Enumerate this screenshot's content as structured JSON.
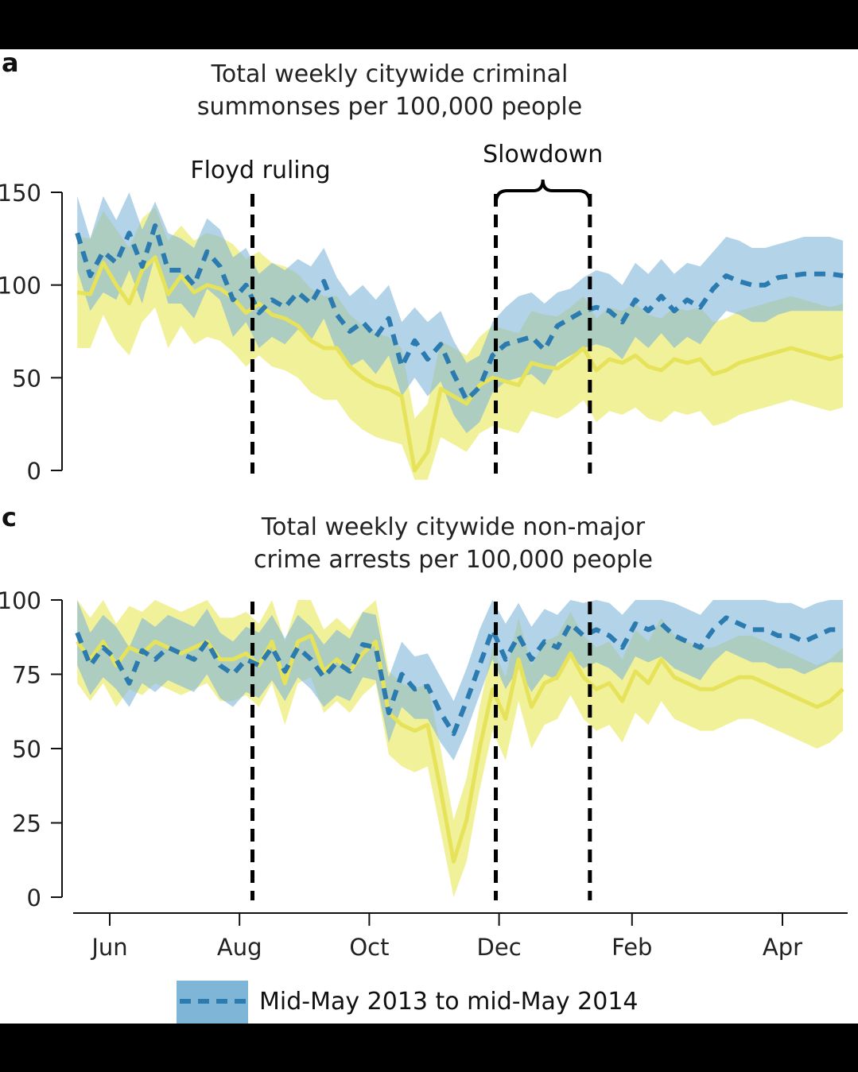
{
  "colors": {
    "blue_band": "#7fb6d8",
    "blue_line": "#2b7bb1",
    "yellow_band": "#eeee88",
    "yellow_line": "#e6e25a",
    "overlap": "#b7d49a",
    "axis": "#111111",
    "background": "#ffffff",
    "frame": "#000000"
  },
  "months": [
    "Jun",
    "Aug",
    "Oct",
    "Dec",
    "Feb",
    "Apr"
  ],
  "legend": {
    "label": "Mid-May 2013 to mid-May 2014"
  },
  "chart_data": [
    {
      "panel_label": "a",
      "type": "line",
      "title_line1": "Total weekly citywide criminal",
      "title_line2": "summonses per 100,000 people",
      "ylim": [
        0,
        150
      ],
      "yticks": [
        0,
        50,
        100,
        150
      ],
      "x_range": [
        -0.5,
        11.5
      ],
      "events": [
        {
          "label": "Floyd ruling",
          "x": 2.2
        },
        {
          "label": "Slowdown",
          "x_start": 5.95,
          "x_end": 7.4
        }
      ],
      "series": [
        {
          "name": "Mid-May 2013 to mid-May 2014",
          "style": "dashed",
          "x": [
            -0.5,
            -0.3,
            -0.1,
            0.1,
            0.3,
            0.5,
            0.7,
            0.9,
            1.1,
            1.3,
            1.5,
            1.7,
            1.9,
            2.1,
            2.3,
            2.5,
            2.7,
            2.9,
            3.1,
            3.3,
            3.5,
            3.7,
            3.9,
            4.1,
            4.3,
            4.5,
            4.7,
            4.9,
            5.1,
            5.3,
            5.5,
            5.7,
            5.9,
            6.1,
            6.3,
            6.5,
            6.7,
            6.9,
            7.1,
            7.3,
            7.5,
            7.7,
            7.9,
            8.1,
            8.3,
            8.5,
            8.7,
            8.9,
            9.1,
            9.3,
            9.5,
            9.7,
            9.9,
            10.1,
            10.3,
            10.5,
            10.7,
            10.9,
            11.1,
            11.3
          ],
          "y": [
            128,
            105,
            118,
            112,
            128,
            110,
            132,
            108,
            108,
            100,
            118,
            110,
            92,
            100,
            85,
            92,
            88,
            96,
            90,
            102,
            84,
            75,
            80,
            72,
            82,
            56,
            70,
            60,
            68,
            52,
            38,
            45,
            62,
            68,
            70,
            72,
            65,
            78,
            82,
            86,
            88,
            86,
            80,
            92,
            86,
            94,
            86,
            92,
            88,
            98,
            105,
            102,
            100,
            100,
            104,
            105,
            106,
            106,
            106,
            105
          ],
          "upper": [
            148,
            125,
            148,
            135,
            150,
            130,
            145,
            128,
            125,
            120,
            136,
            130,
            115,
            120,
            106,
            112,
            108,
            114,
            110,
            120,
            104,
            94,
            100,
            92,
            100,
            80,
            88,
            80,
            86,
            70,
            58,
            62,
            80,
            88,
            94,
            96,
            90,
            96,
            98,
            104,
            108,
            106,
            100,
            112,
            106,
            114,
            106,
            112,
            110,
            118,
            126,
            124,
            120,
            120,
            122,
            124,
            126,
            126,
            126,
            124
          ],
          "lower": [
            108,
            86,
            96,
            92,
            108,
            90,
            116,
            90,
            90,
            82,
            98,
            92,
            72,
            80,
            66,
            72,
            68,
            76,
            70,
            82,
            64,
            56,
            60,
            52,
            62,
            40,
            50,
            40,
            48,
            30,
            20,
            26,
            42,
            48,
            50,
            52,
            46,
            58,
            62,
            66,
            68,
            66,
            60,
            72,
            66,
            74,
            66,
            72,
            68,
            78,
            86,
            84,
            80,
            80,
            84,
            86,
            86,
            86,
            86,
            86
          ]
        },
        {
          "name": "",
          "style": "solid",
          "x": [
            -0.5,
            -0.3,
            -0.1,
            0.1,
            0.3,
            0.5,
            0.7,
            0.9,
            1.1,
            1.3,
            1.5,
            1.7,
            1.9,
            2.1,
            2.3,
            2.5,
            2.7,
            2.9,
            3.1,
            3.3,
            3.5,
            3.7,
            3.9,
            4.1,
            4.3,
            4.5,
            4.7,
            4.9,
            5.1,
            5.3,
            5.5,
            5.7,
            5.9,
            6.1,
            6.3,
            6.5,
            6.7,
            6.9,
            7.1,
            7.3,
            7.5,
            7.7,
            7.9,
            8.1,
            8.3,
            8.5,
            8.7,
            8.9,
            9.1,
            9.3,
            9.5,
            9.7,
            9.9,
            10.1,
            10.3,
            10.5,
            10.7,
            10.9,
            11.1,
            11.3
          ],
          "y": [
            96,
            95,
            112,
            100,
            90,
            108,
            115,
            95,
            105,
            96,
            100,
            98,
            93,
            85,
            90,
            84,
            82,
            78,
            70,
            66,
            66,
            56,
            50,
            46,
            44,
            40,
            0,
            10,
            44,
            40,
            36,
            46,
            50,
            48,
            46,
            58,
            56,
            55,
            60,
            66,
            54,
            60,
            58,
            62,
            56,
            54,
            60,
            58,
            60,
            52,
            54,
            58,
            60,
            62,
            64,
            66,
            64,
            62,
            60,
            62
          ],
          "upper": [
            126,
            125,
            140,
            130,
            120,
            136,
            142,
            124,
            132,
            124,
            128,
            126,
            122,
            114,
            118,
            112,
            110,
            106,
            98,
            94,
            94,
            84,
            78,
            74,
            72,
            66,
            28,
            36,
            70,
            66,
            62,
            72,
            78,
            76,
            74,
            86,
            84,
            83,
            88,
            94,
            82,
            88,
            86,
            90,
            84,
            82,
            88,
            86,
            88,
            80,
            82,
            86,
            88,
            90,
            92,
            94,
            92,
            90,
            88,
            90
          ],
          "lower": [
            66,
            66,
            84,
            70,
            62,
            80,
            88,
            66,
            78,
            68,
            72,
            70,
            64,
            56,
            62,
            56,
            54,
            50,
            42,
            38,
            38,
            28,
            22,
            18,
            16,
            14,
            -5,
            -5,
            18,
            14,
            10,
            20,
            24,
            22,
            20,
            32,
            30,
            28,
            32,
            38,
            26,
            32,
            30,
            34,
            28,
            26,
            32,
            30,
            32,
            24,
            26,
            30,
            32,
            34,
            36,
            38,
            36,
            34,
            32,
            34
          ]
        }
      ]
    },
    {
      "panel_label": "c",
      "type": "line",
      "title_line1": "Total weekly citywide non-major",
      "title_line2": "crime arrests per 100,000 people",
      "ylim": [
        0,
        100
      ],
      "yticks": [
        0,
        25,
        50,
        75,
        100
      ],
      "x_range": [
        -0.5,
        11.5
      ],
      "events": [
        {
          "label": "",
          "x": 2.2
        },
        {
          "label": "",
          "x_start": 5.95,
          "x_end": 7.4
        }
      ],
      "series": [
        {
          "name": "Mid-May 2013 to mid-May 2014",
          "style": "dashed",
          "x": [
            -0.5,
            -0.3,
            -0.1,
            0.1,
            0.3,
            0.5,
            0.7,
            0.9,
            1.1,
            1.3,
            1.5,
            1.7,
            1.9,
            2.1,
            2.3,
            2.5,
            2.7,
            2.9,
            3.1,
            3.3,
            3.5,
            3.7,
            3.9,
            4.1,
            4.3,
            4.5,
            4.7,
            4.9,
            5.1,
            5.3,
            5.5,
            5.7,
            5.9,
            6.1,
            6.3,
            6.5,
            6.7,
            6.9,
            7.1,
            7.3,
            7.5,
            7.7,
            7.9,
            8.1,
            8.3,
            8.5,
            8.7,
            8.9,
            9.1,
            9.3,
            9.5,
            9.7,
            9.9,
            10.1,
            10.3,
            10.5,
            10.7,
            10.9,
            11.1,
            11.3
          ],
          "y": [
            89,
            78,
            84,
            80,
            72,
            83,
            80,
            84,
            82,
            80,
            86,
            78,
            75,
            80,
            78,
            84,
            76,
            84,
            80,
            74,
            79,
            76,
            85,
            84,
            62,
            75,
            70,
            71,
            62,
            55,
            66,
            78,
            90,
            80,
            88,
            80,
            86,
            84,
            92,
            88,
            90,
            88,
            84,
            92,
            90,
            92,
            88,
            86,
            84,
            90,
            94,
            92,
            90,
            90,
            88,
            88,
            86,
            88,
            90,
            90
          ],
          "upper": [
            100,
            89,
            95,
            91,
            84,
            94,
            91,
            95,
            93,
            91,
            97,
            89,
            86,
            91,
            89,
            95,
            87,
            95,
            91,
            85,
            90,
            87,
            96,
            95,
            74,
            86,
            81,
            82,
            74,
            66,
            77,
            90,
            100,
            92,
            99,
            91,
            97,
            95,
            100,
            99,
            100,
            99,
            95,
            100,
            100,
            100,
            99,
            97,
            95,
            100,
            100,
            100,
            100,
            100,
            99,
            99,
            97,
            99,
            100,
            100
          ],
          "lower": [
            78,
            68,
            74,
            70,
            64,
            72,
            69,
            73,
            71,
            69,
            75,
            67,
            64,
            69,
            67,
            73,
            66,
            74,
            70,
            64,
            68,
            66,
            74,
            73,
            52,
            64,
            60,
            60,
            52,
            46,
            56,
            68,
            80,
            70,
            77,
            69,
            75,
            73,
            81,
            77,
            79,
            77,
            73,
            81,
            79,
            81,
            77,
            75,
            73,
            79,
            83,
            81,
            79,
            79,
            77,
            77,
            75,
            77,
            79,
            79
          ]
        },
        {
          "name": "",
          "style": "solid",
          "x": [
            -0.5,
            -0.3,
            -0.1,
            0.1,
            0.3,
            0.5,
            0.7,
            0.9,
            1.1,
            1.3,
            1.5,
            1.7,
            1.9,
            2.1,
            2.3,
            2.5,
            2.7,
            2.9,
            3.1,
            3.3,
            3.5,
            3.7,
            3.9,
            4.1,
            4.3,
            4.5,
            4.7,
            4.9,
            5.1,
            5.3,
            5.5,
            5.7,
            5.9,
            6.1,
            6.3,
            6.5,
            6.7,
            6.9,
            7.1,
            7.3,
            7.5,
            7.7,
            7.9,
            8.1,
            8.3,
            8.5,
            8.7,
            8.9,
            9.1,
            9.3,
            9.5,
            9.7,
            9.9,
            10.1,
            10.3,
            10.5,
            10.7,
            10.9,
            11.1,
            11.3
          ],
          "y": [
            86,
            80,
            86,
            78,
            84,
            82,
            86,
            84,
            82,
            84,
            86,
            80,
            80,
            82,
            78,
            86,
            72,
            86,
            88,
            76,
            80,
            76,
            82,
            86,
            62,
            58,
            56,
            58,
            36,
            12,
            26,
            50,
            70,
            60,
            80,
            64,
            72,
            74,
            82,
            74,
            70,
            72,
            66,
            76,
            72,
            80,
            74,
            72,
            70,
            70,
            72,
            74,
            74,
            72,
            70,
            68,
            66,
            64,
            66,
            70
          ],
          "upper": [
            100,
            94,
            100,
            92,
            98,
            96,
            100,
            98,
            96,
            98,
            100,
            94,
            94,
            96,
            92,
            100,
            86,
            100,
            100,
            90,
            94,
            90,
            96,
            100,
            76,
            72,
            70,
            72,
            50,
            26,
            40,
            64,
            84,
            74,
            94,
            78,
            86,
            88,
            96,
            88,
            84,
            86,
            80,
            90,
            86,
            94,
            88,
            86,
            84,
            84,
            86,
            88,
            88,
            86,
            84,
            82,
            80,
            78,
            80,
            84
          ],
          "lower": [
            72,
            66,
            72,
            64,
            70,
            68,
            72,
            70,
            68,
            70,
            72,
            66,
            66,
            68,
            64,
            72,
            58,
            72,
            74,
            62,
            66,
            62,
            68,
            72,
            48,
            44,
            42,
            44,
            22,
            0,
            12,
            36,
            56,
            46,
            66,
            50,
            58,
            60,
            68,
            60,
            56,
            58,
            52,
            62,
            58,
            66,
            60,
            58,
            56,
            56,
            58,
            60,
            60,
            58,
            56,
            54,
            52,
            50,
            52,
            56
          ]
        }
      ]
    }
  ]
}
